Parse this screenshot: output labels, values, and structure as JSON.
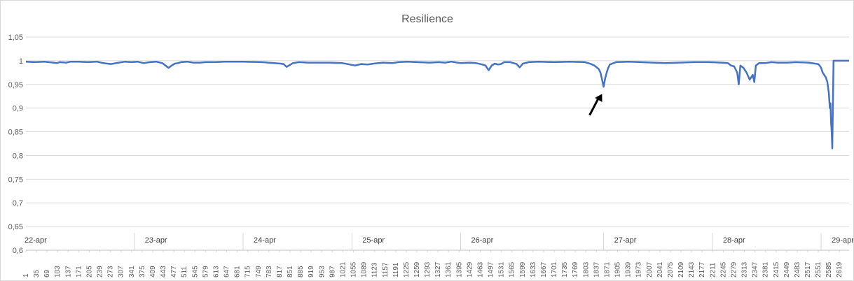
{
  "chart_data": {
    "type": "line",
    "title": "Resilience",
    "xlabel": "",
    "ylabel": "",
    "ylim": [
      0.6,
      1.05
    ],
    "y_ticks": [
      "0,6",
      "0,65",
      "0,7",
      "0,75",
      "0,8",
      "0,85",
      "0,9",
      "0,95",
      "1",
      "1,05"
    ],
    "y_tick_values": [
      0.6,
      0.65,
      0.7,
      0.75,
      0.8,
      0.85,
      0.9,
      0.95,
      1.0,
      1.05
    ],
    "x_range": [
      1,
      2650
    ],
    "x_tick_labels": [
      "1",
      "35",
      "69",
      "103",
      "137",
      "171",
      "205",
      "239",
      "273",
      "307",
      "341",
      "375",
      "409",
      "443",
      "477",
      "511",
      "545",
      "579",
      "613",
      "647",
      "681",
      "715",
      "749",
      "783",
      "817",
      "851",
      "885",
      "919",
      "953",
      "987",
      "1021",
      "1055",
      "1089",
      "1123",
      "1157",
      "1191",
      "1225",
      "1259",
      "1293",
      "1327",
      "1361",
      "1395",
      "1429",
      "1463",
      "1497",
      "1531",
      "1565",
      "1599",
      "1633",
      "1667",
      "1701",
      "1735",
      "1769",
      "1803",
      "1837",
      "1871",
      "1905",
      "1939",
      "1973",
      "2007",
      "2041",
      "2075",
      "2109",
      "2143",
      "2177",
      "2211",
      "2245",
      "2279",
      "2313",
      "2347",
      "2381",
      "2415",
      "2449",
      "2483",
      "2517",
      "2551",
      "2585",
      "2619"
    ],
    "day_groups": [
      {
        "label": "22-apr",
        "start": 1,
        "end": 350
      },
      {
        "label": "23-apr",
        "start": 350,
        "end": 700
      },
      {
        "label": "24-apr",
        "start": 700,
        "end": 1050
      },
      {
        "label": "25-apr",
        "start": 1050,
        "end": 1400
      },
      {
        "label": "26-apr",
        "start": 1400,
        "end": 1860
      },
      {
        "label": "27-apr",
        "start": 1860,
        "end": 2210
      },
      {
        "label": "28-apr",
        "start": 2210,
        "end": 2560
      },
      {
        "label": "29-apr",
        "start": 2560,
        "end": 2650
      }
    ],
    "series": [
      {
        "color": "#4472c4",
        "x": [
          1,
          30,
          60,
          90,
          100,
          110,
          130,
          145,
          170,
          200,
          230,
          250,
          275,
          300,
          320,
          340,
          360,
          380,
          400,
          420,
          440,
          460,
          470,
          480,
          490,
          500,
          520,
          540,
          560,
          580,
          610,
          640,
          700,
          760,
          800,
          820,
          830,
          840,
          860,
          880,
          910,
          940,
          980,
          1020,
          1060,
          1080,
          1100,
          1120,
          1150,
          1180,
          1200,
          1230,
          1260,
          1300,
          1330,
          1350,
          1370,
          1400,
          1430,
          1450,
          1470,
          1480,
          1490,
          1500,
          1510,
          1520,
          1530,
          1540,
          1560,
          1580,
          1590,
          1600,
          1620,
          1650,
          1700,
          1750,
          1800,
          1820,
          1830,
          1840,
          1845,
          1850,
          1855,
          1860,
          1865,
          1870,
          1875,
          1880,
          1900,
          1940,
          1980,
          2020,
          2060,
          2100,
          2150,
          2200,
          2240,
          2260,
          2270,
          2280,
          2290,
          2295,
          2300,
          2310,
          2320,
          2330,
          2340,
          2345,
          2350,
          2360,
          2380,
          2400,
          2420,
          2450,
          2480,
          2520,
          2540,
          2550,
          2555,
          2560,
          2565,
          2570,
          2575,
          2580,
          2585,
          2588,
          2590,
          2592,
          2594,
          2596,
          2600,
          2620,
          2650
        ],
        "y": [
          0.998,
          0.997,
          0.998,
          0.996,
          0.995,
          0.997,
          0.996,
          0.998,
          0.998,
          0.997,
          0.998,
          0.995,
          0.993,
          0.996,
          0.998,
          0.997,
          0.998,
          0.995,
          0.997,
          0.998,
          0.995,
          0.985,
          0.99,
          0.994,
          0.995,
          0.997,
          0.998,
          0.996,
          0.996,
          0.997,
          0.997,
          0.998,
          0.998,
          0.997,
          0.995,
          0.994,
          0.993,
          0.987,
          0.995,
          0.997,
          0.996,
          0.996,
          0.996,
          0.995,
          0.99,
          0.993,
          0.992,
          0.994,
          0.996,
          0.995,
          0.997,
          0.998,
          0.997,
          0.996,
          0.997,
          0.996,
          0.998,
          0.995,
          0.996,
          0.995,
          0.992,
          0.99,
          0.98,
          0.99,
          0.994,
          0.992,
          0.993,
          0.997,
          0.997,
          0.993,
          0.986,
          0.994,
          0.997,
          0.998,
          0.997,
          0.998,
          0.997,
          0.993,
          0.99,
          0.985,
          0.982,
          0.975,
          0.96,
          0.945,
          0.963,
          0.975,
          0.985,
          0.992,
          0.997,
          0.998,
          0.997,
          0.996,
          0.995,
          0.996,
          0.997,
          0.997,
          0.996,
          0.995,
          0.99,
          0.988,
          0.975,
          0.95,
          0.99,
          0.985,
          0.975,
          0.96,
          0.97,
          0.955,
          0.99,
          0.995,
          0.995,
          0.997,
          0.996,
          0.996,
          0.997,
          0.996,
          0.994,
          0.993,
          0.99,
          0.985,
          0.975,
          0.97,
          0.965,
          0.955,
          0.93,
          0.9,
          0.91,
          0.87,
          0.85,
          0.815,
          1.0,
          1.0,
          1.0
        ]
      }
    ],
    "annotations": [
      {
        "type": "arrow",
        "from": [
          1815,
          0.885
        ],
        "to": [
          1855,
          0.93
        ]
      }
    ],
    "grid": true,
    "legend": "none"
  }
}
